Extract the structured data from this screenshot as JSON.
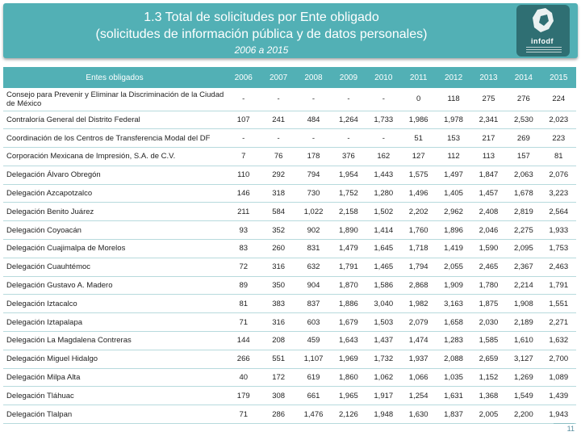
{
  "header": {
    "title_line1": "1.3 Total de solicitudes por Ente obligado",
    "title_line2": "(solicitudes de información pública y de datos personales)",
    "subtitle": "2006 a 2015",
    "logo_text": "info",
    "logo_suffix": "df"
  },
  "colors": {
    "accent": "#52b0b5",
    "logo_bg": "#2f6f73",
    "row_border": "#b7dadd"
  },
  "table": {
    "name_header": "Entes obligados",
    "years": [
      "2006",
      "2007",
      "2008",
      "2009",
      "2010",
      "2011",
      "2012",
      "2013",
      "2014",
      "2015"
    ],
    "rows": [
      {
        "name": "Consejo para Prevenir y Eliminar la Discriminación de la Ciudad de México",
        "values": [
          "-",
          "-",
          "-",
          "-",
          "-",
          "0",
          "118",
          "275",
          "276",
          "224"
        ]
      },
      {
        "name": "Contraloría General del Distrito Federal",
        "values": [
          "107",
          "241",
          "484",
          "1,264",
          "1,733",
          "1,986",
          "1,978",
          "2,341",
          "2,530",
          "2,023"
        ]
      },
      {
        "name": "Coordinación de los Centros de Transferencia Modal del DF",
        "values": [
          "-",
          "-",
          "-",
          "-",
          "-",
          "51",
          "153",
          "217",
          "269",
          "223"
        ]
      },
      {
        "name": "Corporación Mexicana de Impresión, S.A. de C.V.",
        "values": [
          "7",
          "76",
          "178",
          "376",
          "162",
          "127",
          "112",
          "113",
          "157",
          "81"
        ]
      },
      {
        "name": "Delegación Álvaro Obregón",
        "values": [
          "110",
          "292",
          "794",
          "1,954",
          "1,443",
          "1,575",
          "1,497",
          "1,847",
          "2,063",
          "2,076"
        ]
      },
      {
        "name": "Delegación Azcapotzalco",
        "values": [
          "146",
          "318",
          "730",
          "1,752",
          "1,280",
          "1,496",
          "1,405",
          "1,457",
          "1,678",
          "3,223"
        ]
      },
      {
        "name": "Delegación Benito Juárez",
        "values": [
          "211",
          "584",
          "1,022",
          "2,158",
          "1,502",
          "2,202",
          "2,962",
          "2,408",
          "2,819",
          "2,564"
        ]
      },
      {
        "name": "Delegación Coyoacán",
        "values": [
          "93",
          "352",
          "902",
          "1,890",
          "1,414",
          "1,760",
          "1,896",
          "2,046",
          "2,275",
          "1,933"
        ]
      },
      {
        "name": "Delegación Cuajimalpa de Morelos",
        "values": [
          "83",
          "260",
          "831",
          "1,479",
          "1,645",
          "1,718",
          "1,419",
          "1,590",
          "2,095",
          "1,753"
        ]
      },
      {
        "name": "Delegación Cuauhtémoc",
        "values": [
          "72",
          "316",
          "632",
          "1,791",
          "1,465",
          "1,794",
          "2,055",
          "2,465",
          "2,367",
          "2,463"
        ]
      },
      {
        "name": "Delegación Gustavo A. Madero",
        "values": [
          "89",
          "350",
          "904",
          "1,870",
          "1,586",
          "2,868",
          "1,909",
          "1,780",
          "2,214",
          "1,791"
        ]
      },
      {
        "name": "Delegación Iztacalco",
        "values": [
          "81",
          "383",
          "837",
          "1,886",
          "3,040",
          "1,982",
          "3,163",
          "1,875",
          "1,908",
          "1,551"
        ]
      },
      {
        "name": "Delegación Iztapalapa",
        "values": [
          "71",
          "316",
          "603",
          "1,679",
          "1,503",
          "2,079",
          "1,658",
          "2,030",
          "2,189",
          "2,271"
        ]
      },
      {
        "name": "Delegación La Magdalena Contreras",
        "values": [
          "144",
          "208",
          "459",
          "1,643",
          "1,437",
          "1,474",
          "1,283",
          "1,585",
          "1,610",
          "1,632"
        ]
      },
      {
        "name": "Delegación Miguel Hidalgo",
        "values": [
          "266",
          "551",
          "1,107",
          "1,969",
          "1,732",
          "1,937",
          "2,088",
          "2,659",
          "3,127",
          "2,700"
        ]
      },
      {
        "name": "Delegación Milpa Alta",
        "values": [
          "40",
          "172",
          "619",
          "1,860",
          "1,062",
          "1,066",
          "1,035",
          "1,152",
          "1,269",
          "1,089"
        ]
      },
      {
        "name": "Delegación Tláhuac",
        "values": [
          "179",
          "308",
          "661",
          "1,965",
          "1,917",
          "1,254",
          "1,631",
          "1,368",
          "1,549",
          "1,439"
        ]
      },
      {
        "name": "Delegación Tlalpan",
        "values": [
          "71",
          "286",
          "1,476",
          "2,126",
          "1,948",
          "1,630",
          "1,837",
          "2,005",
          "2,200",
          "1,943"
        ]
      }
    ]
  },
  "footer": {
    "page_number": "11"
  }
}
